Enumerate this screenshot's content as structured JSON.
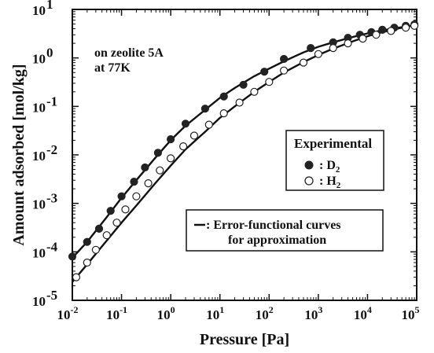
{
  "chart_data": {
    "type": "scatter",
    "title": "",
    "xlabel": "Pressure [Pa]",
    "ylabel": "Amount adsorbed [mol/kg]",
    "x_scale": "log",
    "y_scale": "log",
    "xlim": [
      0.01,
      100000
    ],
    "ylim": [
      1e-05,
      10
    ],
    "x_tick_labels": [
      "10",
      "10",
      "10",
      "10",
      "10",
      "10",
      "10",
      "10"
    ],
    "x_tick_exponents": [
      "-2",
      "-1",
      "0",
      "1",
      "2",
      "3",
      "4",
      "5"
    ],
    "y_tick_labels": [
      "10",
      "10",
      "10",
      "10",
      "10",
      "10",
      "10"
    ],
    "y_tick_exponents": [
      "-5",
      "-4",
      "-3",
      "-2",
      "-1",
      "0",
      "1"
    ],
    "annotation": [
      "on zeolite 5A",
      "at 77K"
    ],
    "legend_experimental": {
      "title": "Experimental",
      "items": [
        {
          "marker": "filled-circle",
          "label": ": D",
          "subscript": "2"
        },
        {
          "marker": "open-circle",
          "label": ": H",
          "subscript": "2"
        }
      ]
    },
    "legend_curves": {
      "line_label": "Error-functional curves",
      "line_label_prefix": ": ",
      "line_label_2": "for approximation"
    },
    "series": [
      {
        "name": "D2",
        "marker": "filled-circle",
        "points": [
          [
            0.01,
            8e-05
          ],
          [
            0.02,
            0.00016
          ],
          [
            0.035,
            0.0003
          ],
          [
            0.06,
            0.0007
          ],
          [
            0.1,
            0.0014
          ],
          [
            0.18,
            0.0028
          ],
          [
            0.3,
            0.0055
          ],
          [
            0.55,
            0.011
          ],
          [
            1,
            0.021
          ],
          [
            2,
            0.044
          ],
          [
            5,
            0.09
          ],
          [
            12,
            0.16
          ],
          [
            30,
            0.28
          ],
          [
            80,
            0.52
          ],
          [
            200,
            0.95
          ],
          [
            700,
            1.6
          ],
          [
            2000,
            2.1
          ],
          [
            4000,
            2.6
          ],
          [
            7000,
            3.0
          ],
          [
            12000,
            3.4
          ],
          [
            20000,
            3.8
          ],
          [
            35000,
            4.2
          ],
          [
            60000,
            4.6
          ],
          [
            90000,
            4.9
          ]
        ]
      },
      {
        "name": "H2",
        "marker": "open-circle",
        "points": [
          [
            0.012,
            3e-05
          ],
          [
            0.02,
            6e-05
          ],
          [
            0.03,
            0.00011
          ],
          [
            0.05,
            0.00022
          ],
          [
            0.08,
            0.0004
          ],
          [
            0.12,
            0.00075
          ],
          [
            0.2,
            0.0014
          ],
          [
            0.35,
            0.0026
          ],
          [
            0.6,
            0.0048
          ],
          [
            1,
            0.0085
          ],
          [
            1.8,
            0.015
          ],
          [
            3,
            0.025
          ],
          [
            6,
            0.042
          ],
          [
            12,
            0.072
          ],
          [
            25,
            0.12
          ],
          [
            50,
            0.2
          ],
          [
            100,
            0.32
          ],
          [
            200,
            0.55
          ],
          [
            500,
            0.8
          ],
          [
            1000,
            1.2
          ],
          [
            2000,
            1.6
          ],
          [
            4000,
            2.0
          ],
          [
            8000,
            2.5
          ],
          [
            15000,
            3.0
          ],
          [
            30000,
            3.6
          ],
          [
            60000,
            4.2
          ],
          [
            90000,
            4.6
          ]
        ]
      }
    ],
    "fit_curves": [
      {
        "name": "D2-fit",
        "points": [
          [
            0.01,
            7.5e-05
          ],
          [
            0.02,
            0.00016
          ],
          [
            0.05,
            0.00052
          ],
          [
            0.1,
            0.0013
          ],
          [
            0.2,
            0.003
          ],
          [
            0.5,
            0.009
          ],
          [
            1,
            0.02
          ],
          [
            2,
            0.04
          ],
          [
            5,
            0.085
          ],
          [
            10,
            0.15
          ],
          [
            20,
            0.24
          ],
          [
            50,
            0.42
          ],
          [
            100,
            0.6
          ],
          [
            200,
            0.85
          ],
          [
            500,
            1.3
          ],
          [
            1000,
            1.7
          ],
          [
            2000,
            2.1
          ],
          [
            5000,
            2.7
          ],
          [
            10000,
            3.2
          ],
          [
            20000,
            3.7
          ],
          [
            50000,
            4.3
          ],
          [
            100000,
            4.8
          ]
        ]
      },
      {
        "name": "H2-fit",
        "points": [
          [
            0.01,
            2.4e-05
          ],
          [
            0.02,
            5.5e-05
          ],
          [
            0.05,
            0.00017
          ],
          [
            0.1,
            0.0004
          ],
          [
            0.2,
            0.0009
          ],
          [
            0.5,
            0.0027
          ],
          [
            1,
            0.006
          ],
          [
            2,
            0.013
          ],
          [
            5,
            0.03
          ],
          [
            10,
            0.058
          ],
          [
            20,
            0.1
          ],
          [
            50,
            0.2
          ],
          [
            100,
            0.32
          ],
          [
            200,
            0.5
          ],
          [
            500,
            0.82
          ],
          [
            1000,
            1.15
          ],
          [
            2000,
            1.55
          ],
          [
            5000,
            2.2
          ],
          [
            10000,
            2.8
          ],
          [
            20000,
            3.4
          ],
          [
            50000,
            4.2
          ],
          [
            100000,
            4.8
          ]
        ]
      }
    ]
  }
}
